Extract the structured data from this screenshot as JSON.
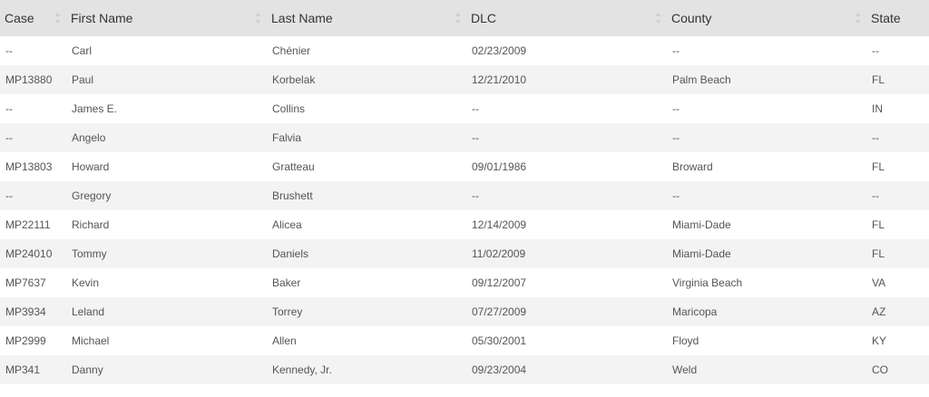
{
  "columns": [
    "Case",
    "First Name",
    "Last Name",
    "DLC",
    "County",
    "State"
  ],
  "rows": [
    [
      "--",
      "Carl",
      "Chénier",
      "02/23/2009",
      "--",
      "--"
    ],
    [
      "MP13880",
      "Paul",
      "Korbelak",
      "12/21/2010",
      "Palm Beach",
      "FL"
    ],
    [
      "--",
      "James E.",
      "Collins",
      "--",
      "--",
      "IN"
    ],
    [
      "--",
      "Angelo",
      "Falvia",
      "--",
      "--",
      "--"
    ],
    [
      "MP13803",
      "Howard",
      "Gratteau",
      "09/01/1986",
      "Broward",
      "FL"
    ],
    [
      "--",
      "Gregory",
      "Brushett",
      "--",
      "--",
      "--"
    ],
    [
      "MP22111",
      "Richard",
      "Alicea",
      "12/14/2009",
      "Miami-Dade",
      "FL"
    ],
    [
      "MP24010",
      "Tommy",
      "Daniels",
      "11/02/2009",
      "Miami-Dade",
      "FL"
    ],
    [
      "MP7637",
      "Kevin",
      "Baker",
      "09/12/2007",
      "Virginia Beach",
      "VA"
    ],
    [
      "MP3934",
      "Leland",
      "Torrey",
      "07/27/2009",
      "Maricopa",
      "AZ"
    ],
    [
      "MP2999",
      "Michael",
      "Allen",
      "05/30/2001",
      "Floyd",
      "KY"
    ],
    [
      "MP341",
      "Danny",
      "Kennedy, Jr.",
      "09/23/2004",
      "Weld",
      "CO"
    ]
  ],
  "colors": {
    "header_bg": "#e3e3e3",
    "row_alt_bg": "#f3f3f3",
    "text": "#555555"
  },
  "icons": {
    "sort": "sort-both-icon"
  }
}
